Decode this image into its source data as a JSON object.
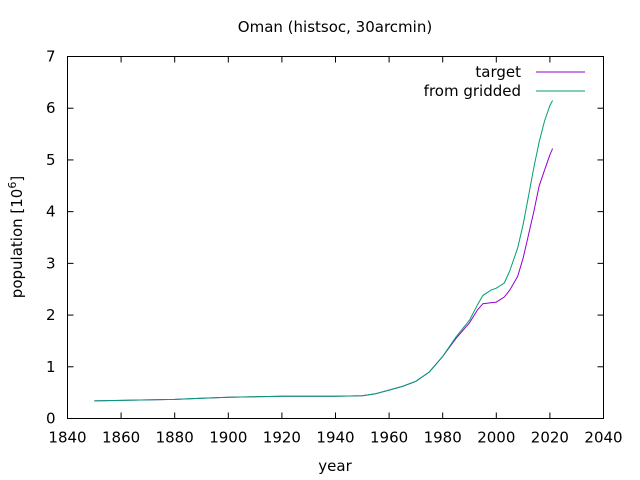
{
  "chart_data": {
    "type": "line",
    "title": "Oman (histsoc, 30arcmin)",
    "xlabel": "year",
    "ylabel_main": "population [10",
    "ylabel_exp": "6",
    "ylabel_close": "]",
    "xlim": [
      1840,
      2040
    ],
    "ylim": [
      0,
      7
    ],
    "xticks": [
      1840,
      1860,
      1880,
      1900,
      1920,
      1940,
      1960,
      1980,
      2000,
      2020,
      2040
    ],
    "yticks": [
      0,
      1,
      2,
      3,
      4,
      5,
      6,
      7
    ],
    "grid": false,
    "legend_position": "top-right",
    "series": [
      {
        "name": "target",
        "color": "#9400d3",
        "x": [
          1850,
          1860,
          1870,
          1880,
          1890,
          1900,
          1910,
          1920,
          1930,
          1940,
          1950,
          1955,
          1960,
          1965,
          1970,
          1975,
          1980,
          1985,
          1990,
          1993,
          1995,
          1998,
          2000,
          2003,
          2005,
          2008,
          2010,
          2012,
          2014,
          2016,
          2018,
          2020,
          2021
        ],
        "y": [
          0.34,
          0.35,
          0.36,
          0.37,
          0.39,
          0.41,
          0.42,
          0.43,
          0.43,
          0.43,
          0.44,
          0.48,
          0.55,
          0.62,
          0.72,
          0.9,
          1.2,
          1.55,
          1.85,
          2.1,
          2.22,
          2.24,
          2.25,
          2.35,
          2.48,
          2.75,
          3.1,
          3.55,
          4.0,
          4.5,
          4.8,
          5.1,
          5.22
        ]
      },
      {
        "name": "from gridded",
        "color": "#009e73",
        "x": [
          1850,
          1860,
          1870,
          1880,
          1890,
          1900,
          1910,
          1920,
          1930,
          1940,
          1950,
          1955,
          1960,
          1965,
          1970,
          1975,
          1980,
          1985,
          1990,
          1993,
          1995,
          1998,
          2000,
          2003,
          2005,
          2008,
          2010,
          2012,
          2014,
          2016,
          2018,
          2020,
          2021
        ],
        "y": [
          0.34,
          0.35,
          0.36,
          0.37,
          0.39,
          0.41,
          0.42,
          0.43,
          0.43,
          0.43,
          0.44,
          0.48,
          0.55,
          0.62,
          0.72,
          0.9,
          1.2,
          1.58,
          1.9,
          2.2,
          2.38,
          2.48,
          2.52,
          2.62,
          2.85,
          3.3,
          3.75,
          4.3,
          4.85,
          5.35,
          5.75,
          6.05,
          6.15
        ]
      }
    ]
  }
}
